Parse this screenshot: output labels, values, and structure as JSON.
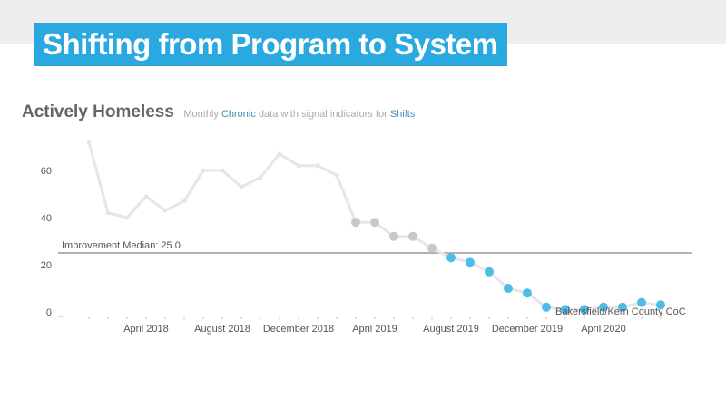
{
  "slide": {
    "title": "Shifting from Program to System"
  },
  "chart_header": {
    "title": "Actively Homeless",
    "subtitle_prefix": "Monthly ",
    "subtitle_chronic": "Chronic",
    "subtitle_middle": " data with signal indicators for ",
    "subtitle_shifts": "Shifts"
  },
  "colors": {
    "banner": "#29a9e0",
    "line": "#e6e6e6",
    "point_default": "#e6e6e6",
    "point_signal_gray": "#c8c8c8",
    "point_signal_blue": "#4dbde8",
    "median_line": "#999999"
  },
  "chart_data": {
    "type": "line",
    "title": "Actively Homeless",
    "subtitle": "Monthly Chronic data with signal indicators for Shifts",
    "ylim": [
      0,
      70
    ],
    "y_ticks": [
      0,
      20,
      40,
      60
    ],
    "x_tick_labels": [
      "April 2018",
      "August 2018",
      "December 2018",
      "April 2019",
      "August 2019",
      "December 2019",
      "April 2020"
    ],
    "x_tick_month_index": [
      3,
      7,
      11,
      15,
      19,
      23,
      27
    ],
    "median": {
      "label": "Improvement Median: 25.0",
      "value": 25.0
    },
    "series_label": "Bakersfield/Kern County CoC",
    "months": [
      "Jan 2018",
      "Feb 2018",
      "Mar 2018",
      "Apr 2018",
      "May 2018",
      "Jun 2018",
      "Jul 2018",
      "Aug 2018",
      "Sep 2018",
      "Oct 2018",
      "Nov 2018",
      "Dec 2018",
      "Jan 2019",
      "Feb 2019",
      "Mar 2019",
      "Apr 2019",
      "May 2019",
      "Jun 2019",
      "Jul 2019",
      "Aug 2019",
      "Sep 2019",
      "Oct 2019",
      "Nov 2019",
      "Dec 2019",
      "Jan 2020",
      "Feb 2020",
      "Mar 2020",
      "Apr 2020",
      "May 2020",
      "Jun 2020",
      "Jul 2020"
    ],
    "values": [
      72,
      42,
      40,
      49,
      43,
      47,
      60,
      60,
      53,
      57,
      67,
      62,
      62,
      58,
      38,
      38,
      32,
      32,
      27,
      23,
      21,
      17,
      10,
      8,
      2,
      1,
      1,
      2,
      2,
      4,
      3
    ],
    "signal": [
      "none",
      "none",
      "none",
      "none",
      "none",
      "none",
      "none",
      "none",
      "none",
      "none",
      "none",
      "none",
      "none",
      "none",
      "gray",
      "gray",
      "gray",
      "gray",
      "gray",
      "blue",
      "blue",
      "blue",
      "blue",
      "blue",
      "blue",
      "blue",
      "blue",
      "blue",
      "blue",
      "blue",
      "blue"
    ]
  }
}
